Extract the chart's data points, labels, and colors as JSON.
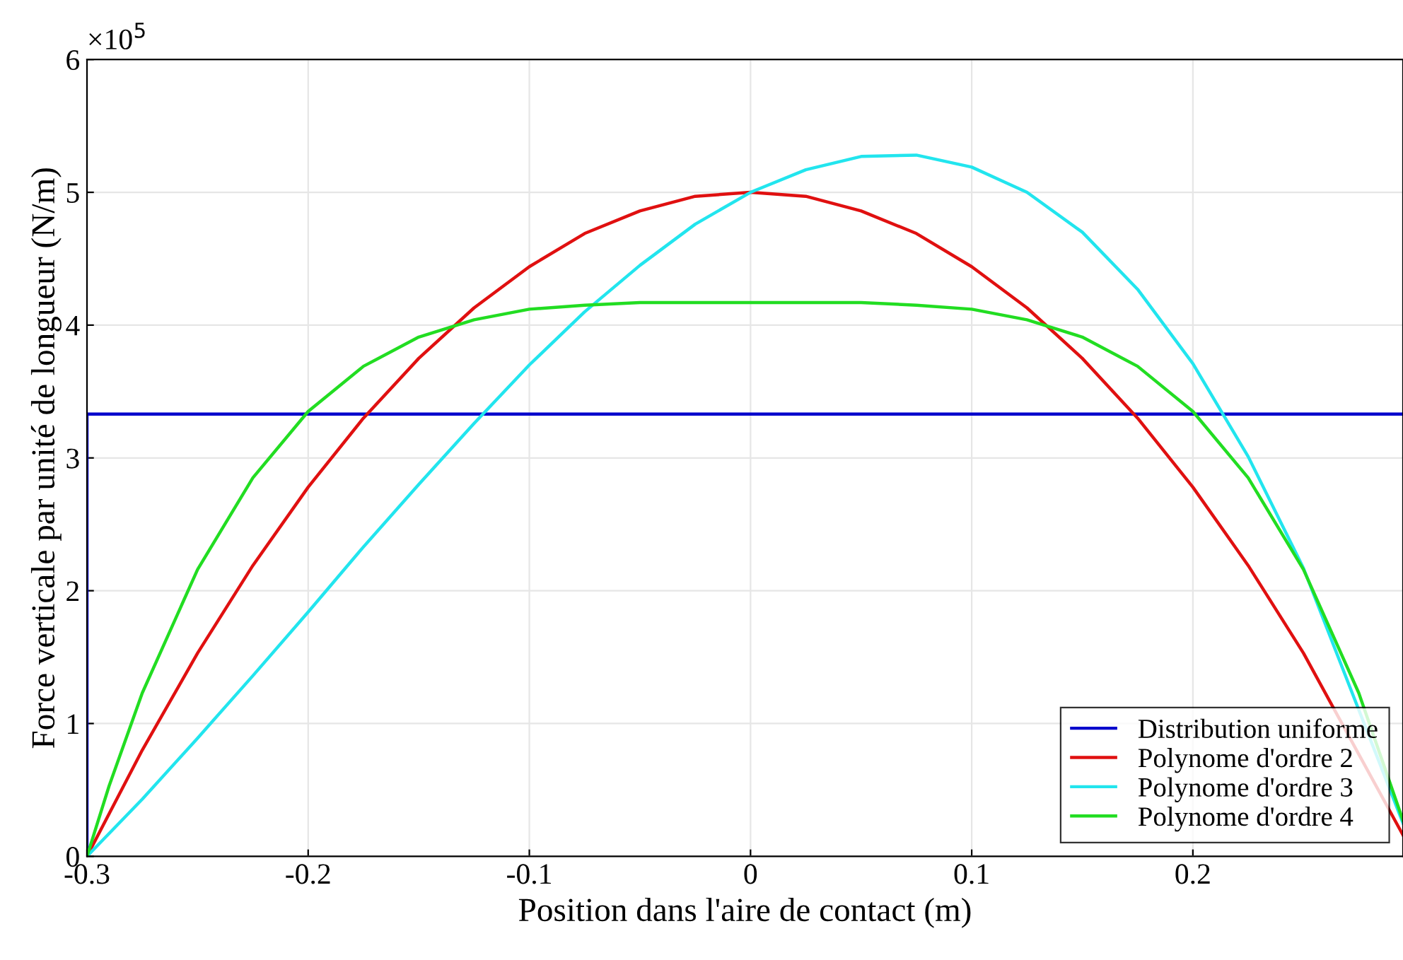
{
  "chart_data": {
    "type": "line",
    "xlabel": "Position dans l'aire de contact (m)",
    "ylabel": "Force verticale par unité de longueur (N/m)",
    "annotations": [
      "×10$^{5}$"
    ],
    "xlim": [
      -0.3,
      0.295
    ],
    "xticks": [
      -0.3,
      -0.2,
      -0.1,
      0,
      0.1,
      0.2
    ],
    "ylim": [
      0,
      6
    ],
    "yticks": [
      0,
      1,
      2,
      3,
      4,
      5,
      6
    ],
    "grid": true,
    "legend": "bottom right",
    "line_style": "solid",
    "marker": "none",
    "series": [
      {
        "name": "Distribution uniforme",
        "color": "#0000cc",
        "x": [
          -0.3,
          -0.3,
          0.295
        ],
        "values": [
          0,
          3.33,
          3.33
        ]
      },
      {
        "name": "Polynome d'ordre 2",
        "color": "#e01010",
        "x": [
          -0.3,
          -0.275,
          -0.25,
          -0.225,
          -0.2,
          -0.175,
          -0.15,
          -0.125,
          -0.1,
          -0.075,
          -0.05,
          -0.025,
          0,
          0.025,
          0.05,
          0.075,
          0.1,
          0.125,
          0.15,
          0.175,
          0.2,
          0.225,
          0.25,
          0.295
        ],
        "values": [
          0,
          0.8,
          1.53,
          2.19,
          2.78,
          3.3,
          3.75,
          4.13,
          4.44,
          4.69,
          4.86,
          4.97,
          5,
          4.97,
          4.86,
          4.69,
          4.44,
          4.13,
          3.75,
          3.3,
          2.78,
          2.19,
          1.53,
          0.16
        ]
      },
      {
        "name": "Polynome d'ordre 3",
        "color": "#22e5ee",
        "x": [
          -0.3,
          -0.275,
          -0.25,
          -0.225,
          -0.2,
          -0.175,
          -0.15,
          -0.125,
          -0.1,
          -0.075,
          -0.05,
          -0.025,
          0,
          0.025,
          0.05,
          0.075,
          0.1,
          0.125,
          0.15,
          0.175,
          0.2,
          0.225,
          0.25,
          0.295
        ],
        "values": [
          0,
          0.43,
          0.89,
          1.36,
          1.84,
          2.33,
          2.8,
          3.26,
          3.7,
          4.1,
          4.45,
          4.76,
          5,
          5.17,
          5.27,
          5.28,
          5.19,
          5,
          4.7,
          4.27,
          3.71,
          3.01,
          2.17,
          0.25
        ]
      },
      {
        "name": "Polynome d'ordre 4",
        "color": "#22dd22",
        "x": [
          -0.3,
          -0.29,
          -0.275,
          -0.25,
          -0.225,
          -0.2,
          -0.175,
          -0.15,
          -0.125,
          -0.1,
          -0.075,
          -0.05,
          0,
          0.05,
          0.075,
          0.1,
          0.125,
          0.15,
          0.175,
          0.2,
          0.225,
          0.25,
          0.275,
          0.295
        ],
        "values": [
          0,
          0.53,
          1.23,
          2.16,
          2.85,
          3.35,
          3.69,
          3.91,
          4.04,
          4.12,
          4.15,
          4.17,
          4.17,
          4.17,
          4.15,
          4.12,
          4.04,
          3.91,
          3.69,
          3.35,
          2.85,
          2.16,
          1.23,
          0.27
        ]
      }
    ]
  }
}
